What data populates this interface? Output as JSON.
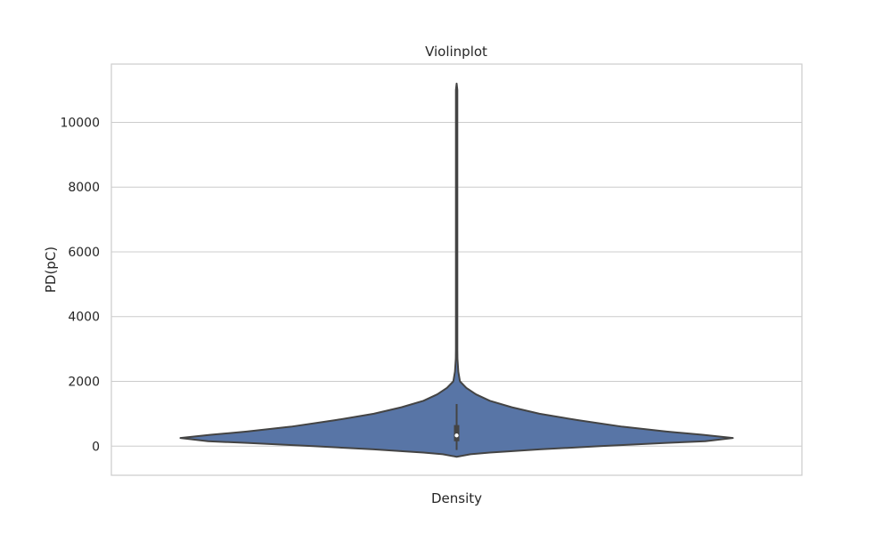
{
  "chart_data": {
    "type": "violin",
    "title": "Violinplot",
    "xlabel": "",
    "ylabel": "PD(pC)",
    "categories": [
      "Density"
    ],
    "ylim": [
      -900,
      11800
    ],
    "yticks": [
      0,
      2000,
      4000,
      6000,
      8000,
      10000
    ],
    "grid": true,
    "fill_color": "#5875a6",
    "edge_color": "#444444",
    "violin": {
      "min": -330,
      "max": 11200,
      "q1": 150,
      "median": 330,
      "q3": 650,
      "whisker_low": -120,
      "whisker_high": 1300,
      "density_profile": [
        {
          "y": -330,
          "w": 0.0
        },
        {
          "y": -250,
          "w": 0.05
        },
        {
          "y": -200,
          "w": 0.12
        },
        {
          "y": -100,
          "w": 0.3
        },
        {
          "y": 0,
          "w": 0.52
        },
        {
          "y": 100,
          "w": 0.76
        },
        {
          "y": 150,
          "w": 0.9
        },
        {
          "y": 250,
          "w": 1.0
        },
        {
          "y": 350,
          "w": 0.89
        },
        {
          "y": 450,
          "w": 0.76
        },
        {
          "y": 600,
          "w": 0.6
        },
        {
          "y": 800,
          "w": 0.44
        },
        {
          "y": 1000,
          "w": 0.3
        },
        {
          "y": 1200,
          "w": 0.2
        },
        {
          "y": 1400,
          "w": 0.12
        },
        {
          "y": 1600,
          "w": 0.07
        },
        {
          "y": 1800,
          "w": 0.035
        },
        {
          "y": 2000,
          "w": 0.012
        },
        {
          "y": 2300,
          "w": 0.006
        },
        {
          "y": 2700,
          "w": 0.003
        },
        {
          "y": 3000,
          "w": 0.002
        },
        {
          "y": 3200,
          "w": 0.0025
        },
        {
          "y": 3500,
          "w": 0.001
        },
        {
          "y": 4200,
          "w": 0.0015
        },
        {
          "y": 4600,
          "w": 0.0008
        },
        {
          "y": 5800,
          "w": 0.0008
        },
        {
          "y": 6100,
          "w": 0.0015
        },
        {
          "y": 6500,
          "w": 0.0006
        },
        {
          "y": 10000,
          "w": 0.0006
        },
        {
          "y": 10800,
          "w": 0.0018
        },
        {
          "y": 11000,
          "w": 0.0015
        },
        {
          "y": 11200,
          "w": 0.0
        }
      ]
    }
  }
}
